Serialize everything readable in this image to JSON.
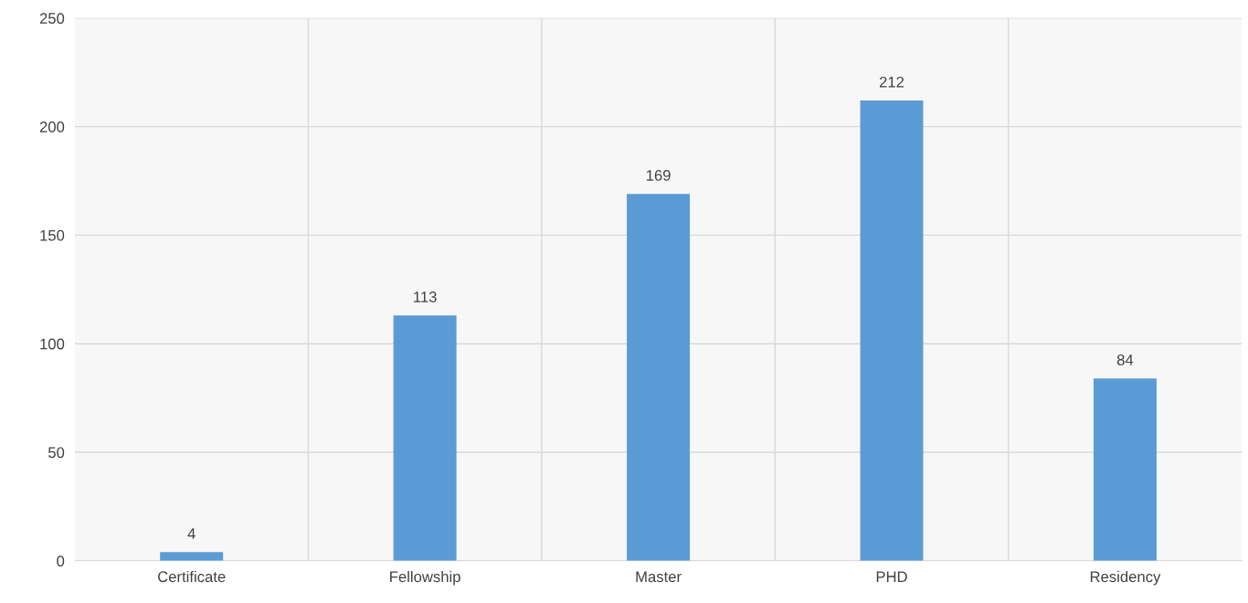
{
  "chart_data": {
    "type": "bar",
    "categories": [
      "Certificate",
      "Fellowship",
      "Master",
      "PHD",
      "Residency"
    ],
    "values": [
      4,
      113,
      169,
      212,
      84
    ],
    "color": "#5b9bd5",
    "ylim": [
      0,
      250
    ],
    "yticks": [
      0,
      50,
      100,
      150,
      200,
      250
    ],
    "grid": true,
    "data_labels": true
  }
}
